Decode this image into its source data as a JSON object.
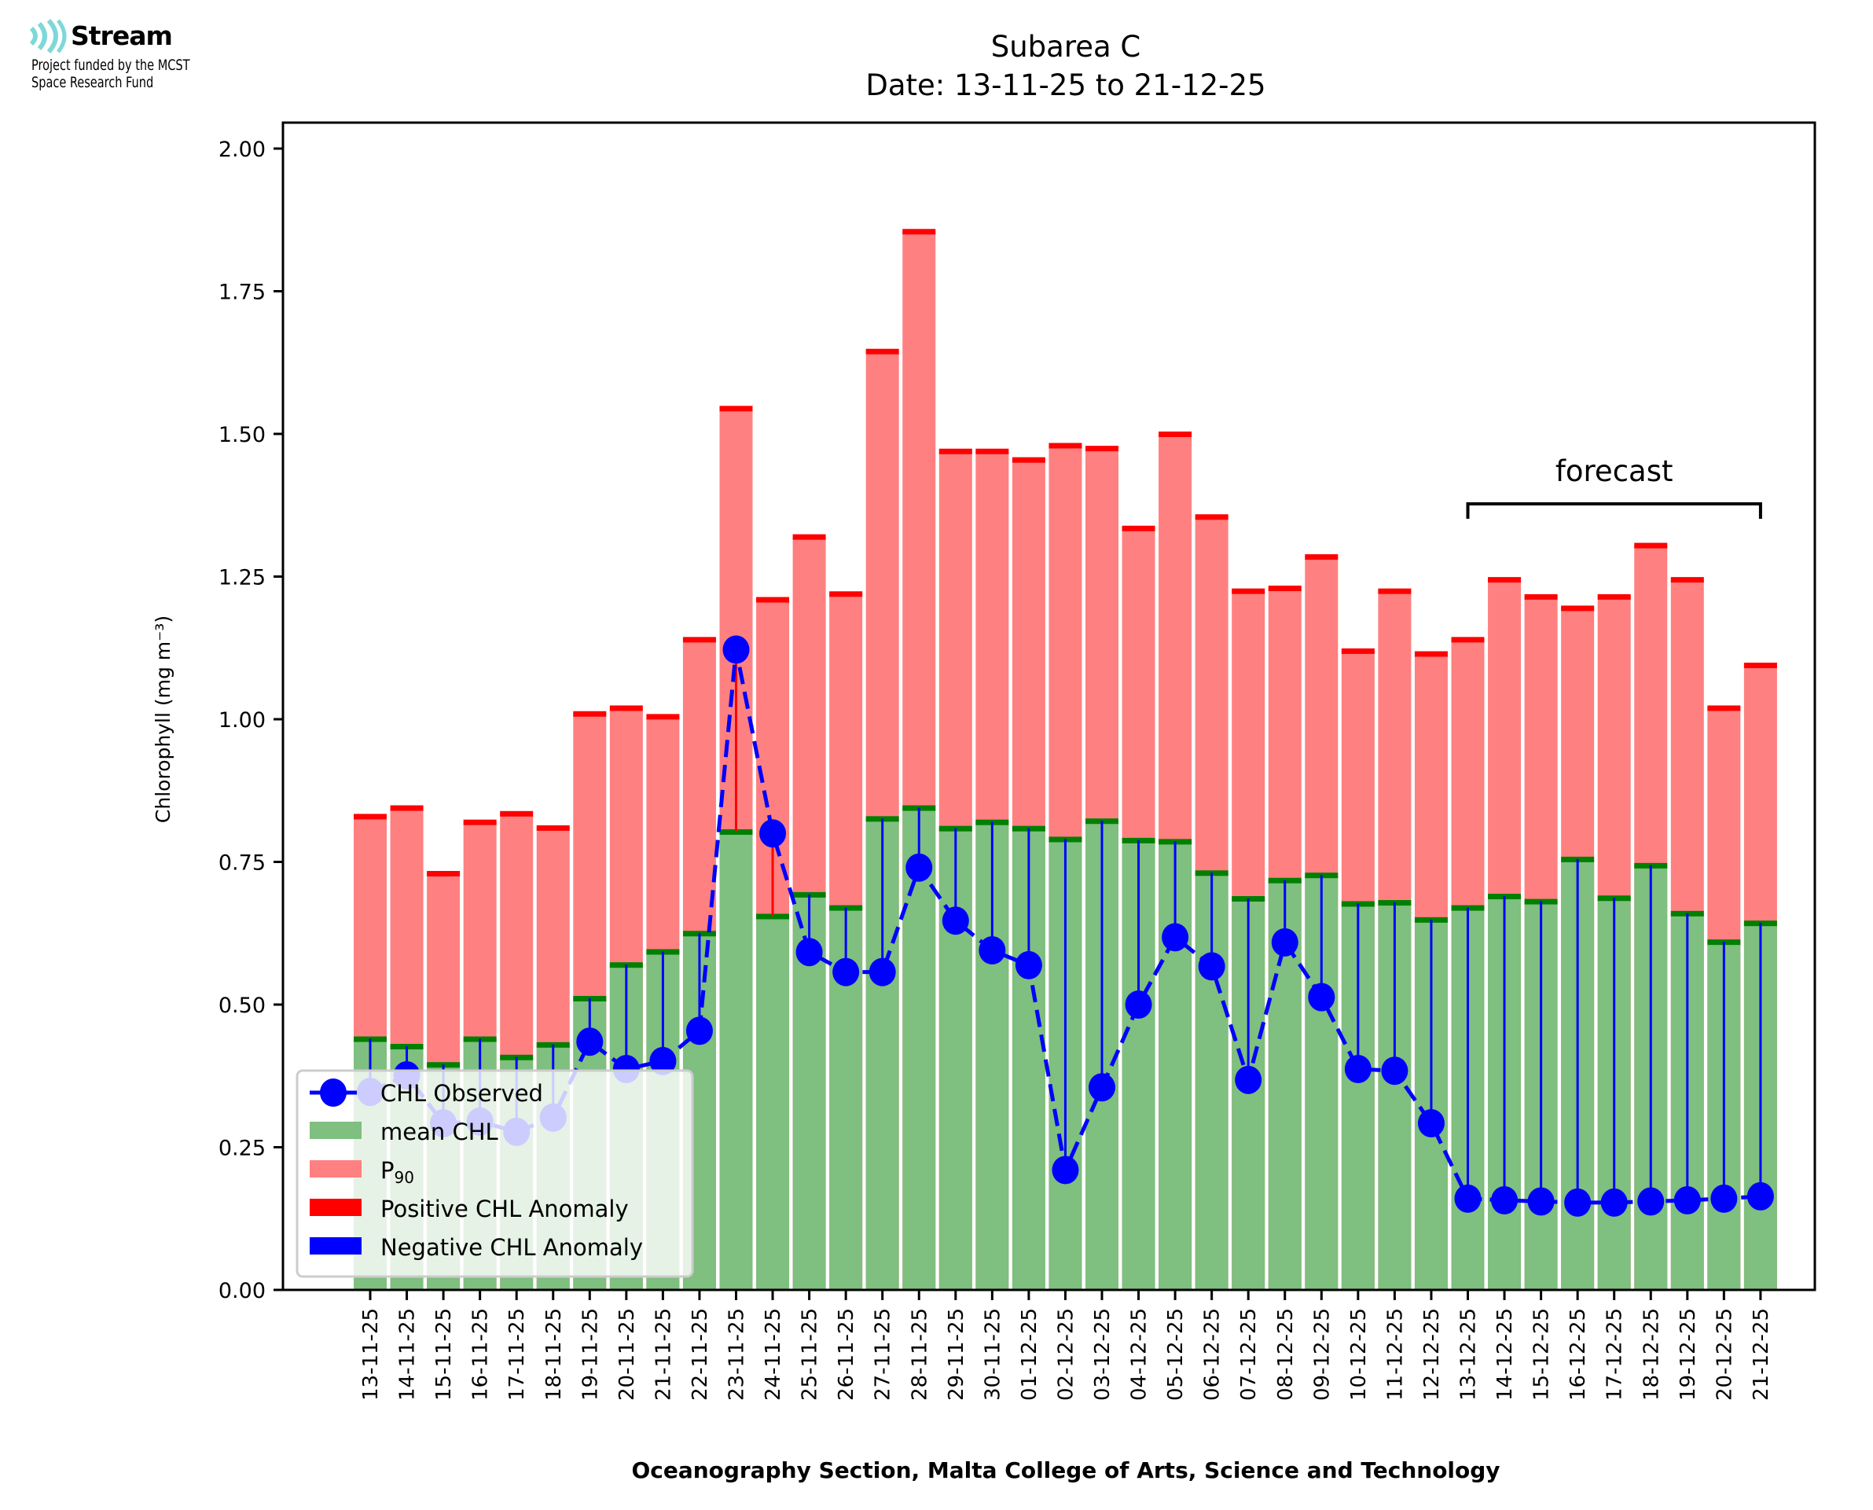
{
  "logo": {
    "brand": "Stream",
    "line1": "Project funded by the MCST",
    "line2": "Space Research Fund",
    "color": "#7fd8d8"
  },
  "chart_data": {
    "type": "bar",
    "title": "Subarea C",
    "subtitle": "Date: 13-11-25 to 21-12-25",
    "xlabel": "Oceanography Section, Malta College of Arts, Science and Technology",
    "ylabel": "Chlorophyll (mg m⁻³)",
    "ylim": [
      0,
      2.05
    ],
    "yticks": [
      "0.00",
      "0.25",
      "0.50",
      "0.75",
      "1.00",
      "1.25",
      "1.50",
      "1.75",
      "2.00"
    ],
    "grid": false,
    "legend_position": "lower-left",
    "annotation": {
      "text": "forecast",
      "from": "13-12-25",
      "to": "21-12-25"
    },
    "categories": [
      "13-11-25",
      "14-11-25",
      "15-11-25",
      "16-11-25",
      "17-11-25",
      "18-11-25",
      "19-11-25",
      "20-11-25",
      "21-11-25",
      "22-11-25",
      "23-11-25",
      "24-11-25",
      "25-11-25",
      "26-11-25",
      "27-11-25",
      "28-11-25",
      "29-11-25",
      "30-11-25",
      "01-12-25",
      "02-12-25",
      "03-12-25",
      "04-12-25",
      "05-12-25",
      "06-12-25",
      "07-12-25",
      "08-12-25",
      "09-12-25",
      "10-12-25",
      "11-12-25",
      "12-12-25",
      "13-12-25",
      "14-12-25",
      "15-12-25",
      "16-12-25",
      "17-12-25",
      "18-12-25",
      "19-12-25",
      "20-12-25",
      "21-12-25"
    ],
    "series": [
      {
        "name": "mean CHL",
        "color": "#7fbf7f",
        "edge_color": "#008000",
        "values": [
          0.44,
          0.427,
          0.395,
          0.44,
          0.408,
          0.43,
          0.511,
          0.57,
          0.593,
          0.625,
          0.803,
          0.655,
          0.693,
          0.67,
          0.826,
          0.845,
          0.809,
          0.82,
          0.809,
          0.79,
          0.822,
          0.788,
          0.786,
          0.731,
          0.686,
          0.718,
          0.727,
          0.677,
          0.679,
          0.649,
          0.67,
          0.69,
          0.681,
          0.755,
          0.687,
          0.744,
          0.66,
          0.61,
          0.643
        ]
      },
      {
        "name": "P₉₀",
        "label_main": "P",
        "label_sub": "90",
        "color": "#ff8080",
        "edge_color": "#ff0000",
        "values": [
          0.83,
          0.845,
          0.73,
          0.82,
          0.835,
          0.81,
          1.01,
          1.02,
          1.005,
          1.14,
          1.545,
          1.21,
          1.32,
          1.22,
          1.645,
          1.855,
          1.47,
          1.47,
          1.455,
          1.48,
          1.475,
          1.335,
          1.5,
          1.355,
          1.225,
          1.23,
          1.285,
          1.12,
          1.225,
          1.115,
          1.14,
          1.245,
          1.215,
          1.195,
          1.215,
          1.305,
          1.245,
          1.02,
          1.095
        ]
      },
      {
        "name": "CHL Observed",
        "color": "#0000ff",
        "values": [
          0.347,
          0.376,
          0.292,
          0.295,
          0.277,
          0.302,
          0.435,
          0.387,
          0.401,
          0.454,
          1.122,
          0.8,
          0.592,
          0.557,
          0.557,
          0.74,
          0.647,
          0.595,
          0.569,
          0.21,
          0.355,
          0.5,
          0.618,
          0.567,
          0.368,
          0.609,
          0.513,
          0.387,
          0.384,
          0.292,
          0.16,
          0.157,
          0.155,
          0.153,
          0.153,
          0.155,
          0.157,
          0.16,
          0.164
        ]
      }
    ],
    "legend": [
      {
        "label": "CHL Observed",
        "color": "#0000ff",
        "kind": "line-marker"
      },
      {
        "label": "mean CHL",
        "color": "#7fbf7f",
        "kind": "patch"
      },
      {
        "label": "P₉₀",
        "color": "#ff8080",
        "kind": "patch"
      },
      {
        "label": "Positive CHL Anomaly",
        "color": "#ff0000",
        "kind": "patch"
      },
      {
        "label": "Negative CHL Anomaly",
        "color": "#0000ff",
        "kind": "patch"
      }
    ],
    "anomaly_colors": {
      "positive": "#ff0000",
      "negative": "#0000ff"
    }
  }
}
